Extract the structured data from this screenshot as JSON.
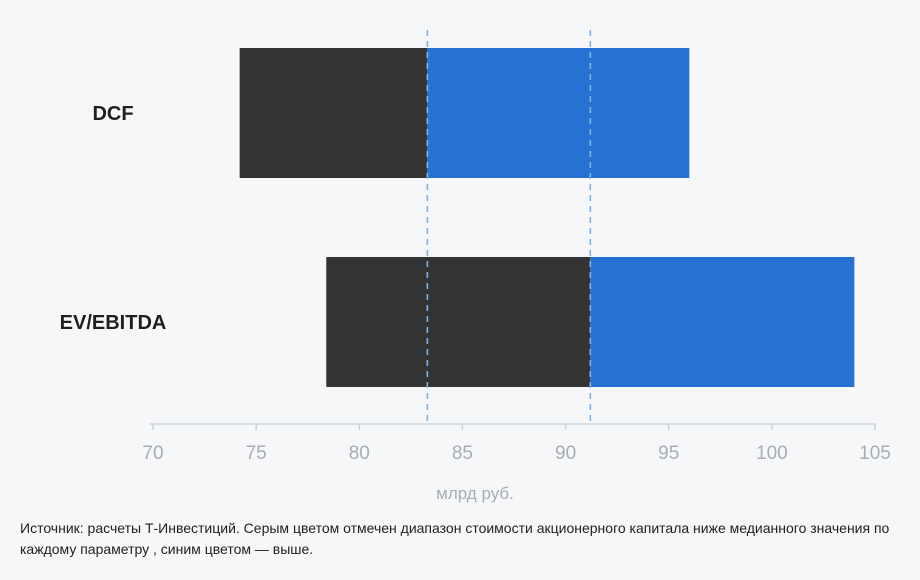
{
  "chart_data": {
    "type": "bar",
    "orientation": "horizontal",
    "subtype": "floating-range",
    "categories": [
      "DCF",
      "EV/EBITDA"
    ],
    "series": [
      {
        "color": "#333333",
        "ranges": [
          [
            74.2,
            83.3
          ],
          [
            78.4,
            91.2
          ]
        ]
      },
      {
        "color": "#2672d2",
        "ranges": [
          [
            83.3,
            96
          ],
          [
            91.2,
            104
          ]
        ]
      }
    ],
    "reference_lines": [
      83.3,
      91.2
    ],
    "reference_line_color": "#7fb3e6",
    "xlim": [
      70,
      105
    ],
    "x_ticks": [
      70,
      75,
      80,
      85,
      90,
      95,
      100,
      105
    ],
    "xlabel": "млрд руб.",
    "grid": false
  },
  "footnote": "Источник: расчеты Т-Инвестиций. Серым цветом отмечен диапазон стоимости акционерного капитала ниже медианного значения по каждому параметру , синим цветом — выше.",
  "colors": {
    "background": "#f6f7f8",
    "axis": "#cfd3d7"
  }
}
